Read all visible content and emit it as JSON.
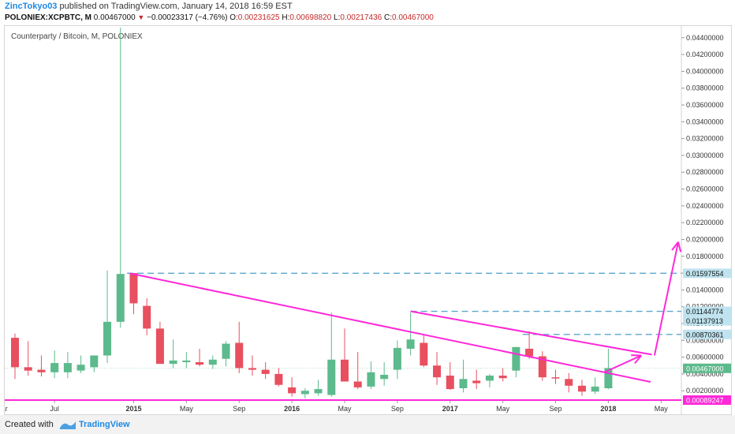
{
  "header": {
    "author": "ZincTokyo03",
    "published": "published on TradingView.com, January 14, 2018 16:59 EST",
    "symbol": "POLONIEX:XCPBTC, M",
    "last": "0.00467000",
    "change": "−0.00023317 (−4.76%)",
    "o_label": "O:",
    "o_value": "0.00231625",
    "h_label": "H:",
    "h_value": "0.00698820",
    "l_label": "L:",
    "l_value": "0.00217436",
    "c_label": "C:",
    "c_value": "0.00467000"
  },
  "footer": {
    "created": "Created with",
    "brand": "TradingView"
  },
  "colors": {
    "up": "#5cba8c",
    "down": "#e84f5f",
    "drawing": "#ff28d8",
    "level": "#5aa8cc"
  },
  "chart_data": {
    "type": "candlestick",
    "title": "Counterparty / Bitcoin, M, POLONIEX",
    "ylim": [
      0.00089247,
      0.04539
    ],
    "y_ticks": [
      "0.04400000",
      "0.04200000",
      "0.04000000",
      "0.03800000",
      "0.03600000",
      "0.03400000",
      "0.03200000",
      "0.03000000",
      "0.02800000",
      "0.02600000",
      "0.02400000",
      "0.02200000",
      "0.02000000",
      "0.01800000",
      "0.01600000",
      "0.01400000",
      "0.01200000",
      "0.01000000",
      "0.00800000",
      "0.00600000",
      "0.00400000",
      "0.00200000"
    ],
    "x_ticks": [
      {
        "label": "ar",
        "i": -0.8
      },
      {
        "label": "Jul",
        "i": 3
      },
      {
        "label": "2015",
        "i": 9
      },
      {
        "label": "May",
        "i": 13
      },
      {
        "label": "Sep",
        "i": 17
      },
      {
        "label": "2016",
        "i": 21
      },
      {
        "label": "May",
        "i": 25
      },
      {
        "label": "Sep",
        "i": 29
      },
      {
        "label": "2017",
        "i": 33
      },
      {
        "label": "May",
        "i": 37
      },
      {
        "label": "Sep",
        "i": 41
      },
      {
        "label": "2018",
        "i": 45
      },
      {
        "label": "May",
        "i": 49
      }
    ],
    "candles": [
      {
        "o": 0.0083,
        "h": 0.0088,
        "l": 0.0034,
        "c": 0.0048
      },
      {
        "o": 0.0048,
        "h": 0.0079,
        "l": 0.0038,
        "c": 0.0044
      },
      {
        "o": 0.0045,
        "h": 0.0062,
        "l": 0.0037,
        "c": 0.0042
      },
      {
        "o": 0.0042,
        "h": 0.0068,
        "l": 0.0035,
        "c": 0.0053
      },
      {
        "o": 0.0042,
        "h": 0.0066,
        "l": 0.0035,
        "c": 0.0053
      },
      {
        "o": 0.0044,
        "h": 0.0062,
        "l": 0.0041,
        "c": 0.0051
      },
      {
        "o": 0.0048,
        "h": 0.006,
        "l": 0.0042,
        "c": 0.0062
      },
      {
        "o": 0.0062,
        "h": 0.0163,
        "l": 0.0053,
        "c": 0.0102
      },
      {
        "o": 0.0102,
        "h": 0.0452,
        "l": 0.0095,
        "c": 0.0159
      },
      {
        "o": 0.016,
        "h": 0.016,
        "l": 0.0111,
        "c": 0.0124
      },
      {
        "o": 0.0121,
        "h": 0.013,
        "l": 0.0086,
        "c": 0.0094
      },
      {
        "o": 0.0094,
        "h": 0.0102,
        "l": 0.0054,
        "c": 0.0052
      },
      {
        "o": 0.0052,
        "h": 0.0081,
        "l": 0.0047,
        "c": 0.0056
      },
      {
        "o": 0.0054,
        "h": 0.0066,
        "l": 0.0047,
        "c": 0.0056
      },
      {
        "o": 0.0054,
        "h": 0.007,
        "l": 0.0049,
        "c": 0.0051
      },
      {
        "o": 0.0051,
        "h": 0.0062,
        "l": 0.0046,
        "c": 0.0057
      },
      {
        "o": 0.0058,
        "h": 0.0079,
        "l": 0.0049,
        "c": 0.0076
      },
      {
        "o": 0.0077,
        "h": 0.0102,
        "l": 0.0041,
        "c": 0.0047
      },
      {
        "o": 0.0047,
        "h": 0.0062,
        "l": 0.0038,
        "c": 0.0045
      },
      {
        "o": 0.0045,
        "h": 0.0054,
        "l": 0.0034,
        "c": 0.004
      },
      {
        "o": 0.004,
        "h": 0.0047,
        "l": 0.0025,
        "c": 0.0027
      },
      {
        "o": 0.0024,
        "h": 0.0036,
        "l": 0.0013,
        "c": 0.0017
      },
      {
        "o": 0.0016,
        "h": 0.0023,
        "l": 0.0011,
        "c": 0.002
      },
      {
        "o": 0.0017,
        "h": 0.0033,
        "l": 0.0014,
        "c": 0.0022
      },
      {
        "o": 0.0015,
        "h": 0.0113,
        "l": 0.0013,
        "c": 0.0057
      },
      {
        "o": 0.0057,
        "h": 0.0094,
        "l": 0.0033,
        "c": 0.0031
      },
      {
        "o": 0.0031,
        "h": 0.0066,
        "l": 0.0022,
        "c": 0.0024
      },
      {
        "o": 0.0025,
        "h": 0.0055,
        "l": 0.0022,
        "c": 0.0042
      },
      {
        "o": 0.0034,
        "h": 0.0054,
        "l": 0.0026,
        "c": 0.0039
      },
      {
        "o": 0.0045,
        "h": 0.008,
        "l": 0.0034,
        "c": 0.0071
      },
      {
        "o": 0.007,
        "h": 0.0113,
        "l": 0.0062,
        "c": 0.0081
      },
      {
        "o": 0.0077,
        "h": 0.0087,
        "l": 0.0048,
        "c": 0.005
      },
      {
        "o": 0.005,
        "h": 0.0066,
        "l": 0.0027,
        "c": 0.0036
      },
      {
        "o": 0.0038,
        "h": 0.0054,
        "l": 0.0021,
        "c": 0.0022
      },
      {
        "o": 0.0023,
        "h": 0.0057,
        "l": 0.0018,
        "c": 0.0034
      },
      {
        "o": 0.0032,
        "h": 0.0045,
        "l": 0.0022,
        "c": 0.0029
      },
      {
        "o": 0.0032,
        "h": 0.004,
        "l": 0.0024,
        "c": 0.0038
      },
      {
        "o": 0.0038,
        "h": 0.0047,
        "l": 0.0031,
        "c": 0.0035
      },
      {
        "o": 0.0044,
        "h": 0.0072,
        "l": 0.0036,
        "c": 0.0072
      },
      {
        "o": 0.007,
        "h": 0.0091,
        "l": 0.0058,
        "c": 0.0061
      },
      {
        "o": 0.0061,
        "h": 0.0067,
        "l": 0.0032,
        "c": 0.0036
      },
      {
        "o": 0.0036,
        "h": 0.0045,
        "l": 0.0028,
        "c": 0.0035
      },
      {
        "o": 0.0034,
        "h": 0.0041,
        "l": 0.0018,
        "c": 0.0026
      },
      {
        "o": 0.0026,
        "h": 0.0033,
        "l": 0.0014,
        "c": 0.0019
      },
      {
        "o": 0.0019,
        "h": 0.0036,
        "l": 0.0016,
        "c": 0.0025
      },
      {
        "o": 0.0023,
        "h": 0.007,
        "l": 0.0022,
        "c": 0.0047
      }
    ],
    "levels": [
      {
        "label": "0.01597554",
        "y": 0.01597554,
        "style": "dashed",
        "from_i": 8.5
      },
      {
        "label": "0.01144774",
        "y": 0.01144774,
        "style": "dashed",
        "from_i": 30
      },
      {
        "label": "0.01137913",
        "y": 0.01137913,
        "style": "none"
      },
      {
        "label": "0.00870361",
        "y": 0.00870361,
        "style": "dashed",
        "from_i": 38.5
      },
      {
        "label": "0.00467000",
        "y": 0.00467,
        "style": "current"
      },
      {
        "label": "0.00089247",
        "y": 0.00089247,
        "style": "solid-magenta"
      }
    ],
    "trendlines": [
      {
        "x1": 8.7,
        "y1": 0.01597,
        "x2": 48.2,
        "y2": 0.00305
      },
      {
        "x1": 30,
        "y1": 0.01145,
        "x2": 48.3,
        "y2": 0.0063
      }
    ],
    "arrows": [
      {
        "x1": 48.5,
        "y1": 0.0062,
        "x2": 50.3,
        "y2": 0.0197
      },
      {
        "x1": 44.7,
        "y1": 0.0042,
        "x2": 47.5,
        "y2": 0.0062
      }
    ]
  }
}
